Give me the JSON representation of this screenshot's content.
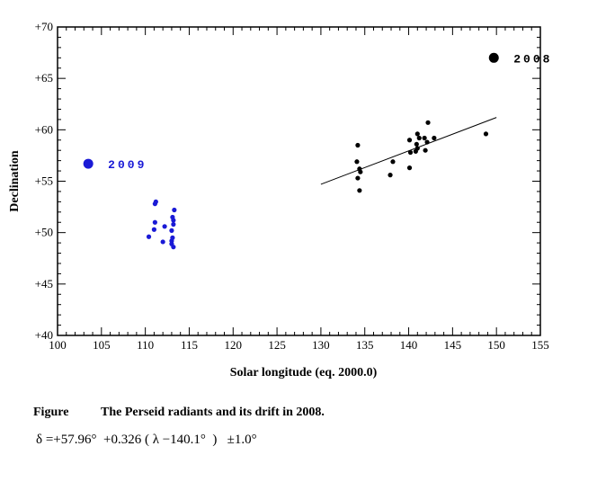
{
  "chart_data": {
    "type": "scatter",
    "xlabel": "Solar longitude (eq. 2000.0)",
    "ylabel": "Declination",
    "xlim": [
      100,
      155
    ],
    "ylim": [
      40,
      70
    ],
    "x_ticks": [
      "100",
      "105",
      "110",
      "115",
      "120",
      "125",
      "130",
      "135",
      "140",
      "145",
      "150",
      "155"
    ],
    "y_ticks": [
      "+40",
      "+45",
      "+50",
      "+55",
      "+60",
      "+65",
      "+70"
    ],
    "grid": false,
    "series": [
      {
        "name": "2008",
        "color": "#000000",
        "points": [
          [
            134.2,
            58.5
          ],
          [
            134.1,
            56.9
          ],
          [
            134.4,
            56.2
          ],
          [
            134.5,
            55.9
          ],
          [
            134.2,
            55.3
          ],
          [
            134.4,
            54.1
          ],
          [
            137.9,
            55.6
          ],
          [
            138.2,
            56.9
          ],
          [
            140.1,
            56.3
          ],
          [
            140.2,
            57.8
          ],
          [
            140.1,
            59.0
          ],
          [
            140.8,
            57.9
          ],
          [
            140.9,
            58.6
          ],
          [
            141.0,
            59.6
          ],
          [
            141.2,
            59.2
          ],
          [
            141.0,
            58.2
          ],
          [
            141.9,
            58.0
          ],
          [
            142.1,
            58.8
          ],
          [
            141.8,
            59.2
          ],
          [
            142.2,
            60.7
          ],
          [
            142.9,
            59.2
          ],
          [
            148.8,
            59.6
          ]
        ]
      },
      {
        "name": "2009",
        "color": "#1a1ad6",
        "points": [
          [
            110.4,
            49.6
          ],
          [
            111.0,
            50.3
          ],
          [
            111.1,
            51.0
          ],
          [
            111.1,
            52.8
          ],
          [
            111.2,
            53.0
          ],
          [
            112.0,
            49.1
          ],
          [
            112.2,
            50.6
          ],
          [
            113.0,
            48.9
          ],
          [
            113.0,
            50.2
          ],
          [
            113.1,
            51.5
          ],
          [
            113.1,
            49.5
          ],
          [
            113.2,
            50.8
          ],
          [
            113.2,
            51.2
          ],
          [
            113.3,
            52.2
          ],
          [
            113.2,
            48.6
          ],
          [
            113.0,
            49.2
          ]
        ]
      }
    ],
    "fit_line": {
      "x": [
        130,
        150
      ],
      "y": [
        54.7,
        61.2
      ]
    },
    "legend": [
      {
        "label": "2008",
        "color": "#000000",
        "x": 149.7,
        "y": 67.0
      },
      {
        "label": "2009",
        "color": "#1a1ad6",
        "x": 103.5,
        "y": 56.7
      }
    ]
  },
  "caption": {
    "label": "Figure",
    "text": "The Perseid radiants and its drift in 2008.",
    "formula": "δ =+57.96°  +0.326 ( λ −140.1°  )   ±1.0°"
  }
}
